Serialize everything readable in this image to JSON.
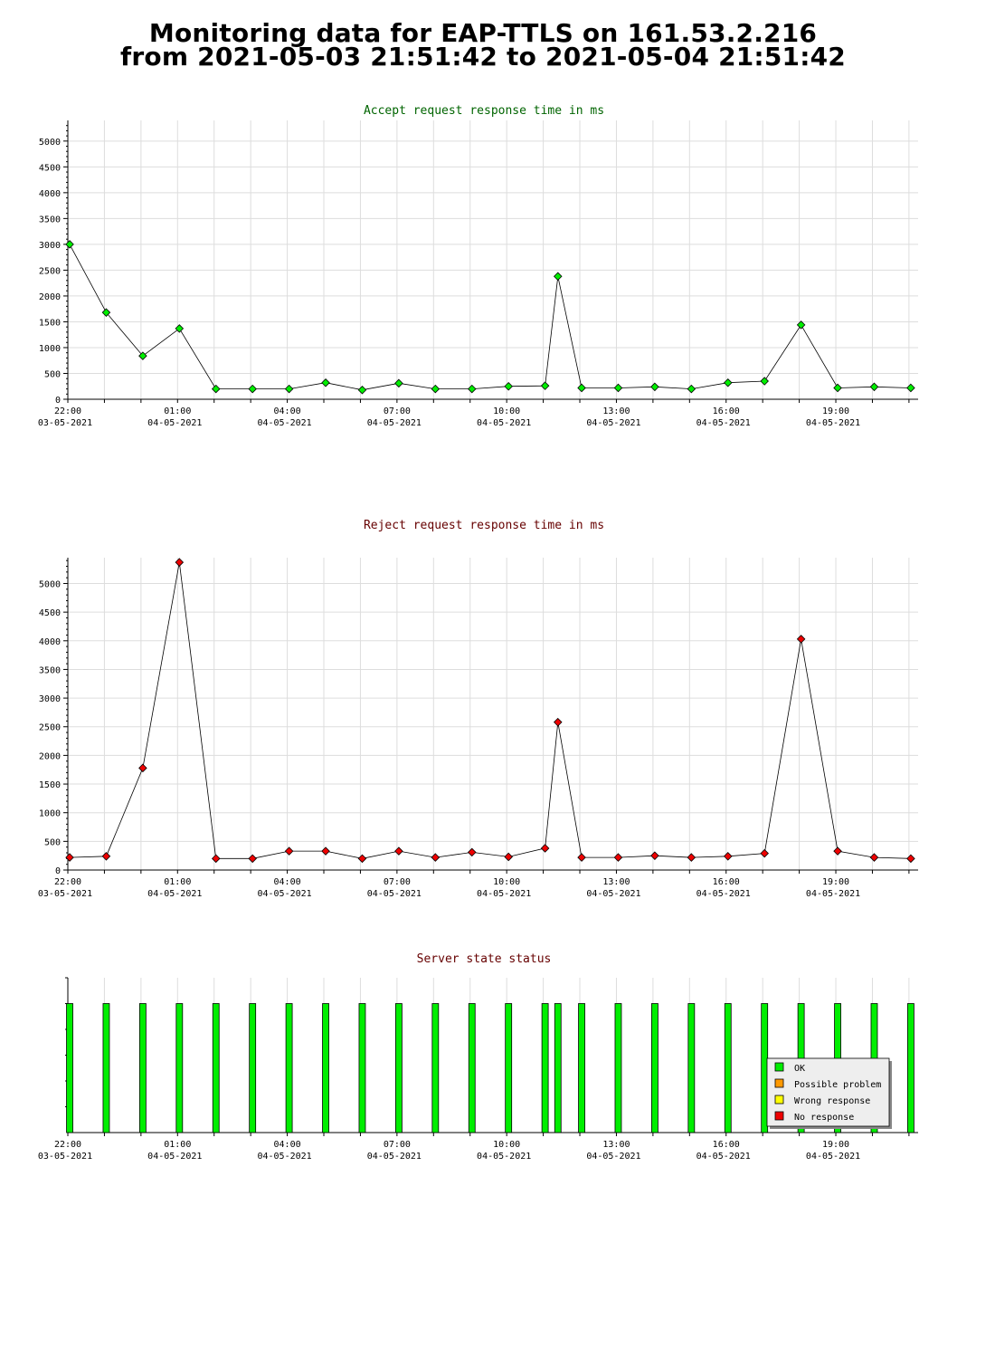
{
  "page": {
    "title_line1": "Monitoring data for EAP-TTLS on 161.53.2.216",
    "title_line2": "from 2021-05-03 21:51:42 to 2021-05-04 21:51:42"
  },
  "colors": {
    "accept_title": "#006400",
    "reject_title": "#660000",
    "status_title": "#660000",
    "accept_marker": "#00ee00",
    "reject_marker": "#ee0000",
    "ok": "#00ee00",
    "possible_problem": "#ff9900",
    "wrong_response": "#ffff00",
    "no_response": "#ee0000",
    "grid": "#dddddd"
  },
  "chart_data": [
    {
      "type": "line",
      "title": "Accept request response time in ms",
      "xlim": [
        22,
        45.25
      ],
      "ylim": [
        0,
        5400
      ],
      "yticks": [
        0,
        500,
        1000,
        1500,
        2000,
        2500,
        3000,
        3500,
        4000,
        4500,
        5000
      ],
      "xticks": [
        {
          "x": 22,
          "time": "22:00",
          "date": "03-05-2021"
        },
        {
          "x": 25,
          "time": "01:00",
          "date": "04-05-2021"
        },
        {
          "x": 28,
          "time": "04:00",
          "date": "04-05-2021"
        },
        {
          "x": 31,
          "time": "07:00",
          "date": "04-05-2021"
        },
        {
          "x": 34,
          "time": "10:00",
          "date": "04-05-2021"
        },
        {
          "x": 37,
          "time": "13:00",
          "date": "04-05-2021"
        },
        {
          "x": 40,
          "time": "16:00",
          "date": "04-05-2021"
        },
        {
          "x": 43,
          "time": "19:00",
          "date": "04-05-2021"
        }
      ],
      "x": [
        22.05,
        23.05,
        24.05,
        25.05,
        26.05,
        27.05,
        28.05,
        29.05,
        30.05,
        31.05,
        32.05,
        33.05,
        34.05,
        35.05,
        35.4,
        36.05,
        37.05,
        38.05,
        39.05,
        40.05,
        41.05,
        42.05,
        43.05,
        44.05,
        45.05
      ],
      "series": [
        {
          "values": [
            3000,
            1680,
            840,
            1370,
            200,
            200,
            200,
            320,
            180,
            310,
            200,
            200,
            250,
            260,
            2380,
            220,
            220,
            240,
            200,
            320,
            350,
            1440,
            220,
            240,
            220
          ]
        }
      ]
    },
    {
      "type": "line",
      "title": "Reject request response time in ms",
      "xlim": [
        22,
        45.25
      ],
      "ylim": [
        0,
        5450
      ],
      "yticks": [
        0,
        500,
        1000,
        1500,
        2000,
        2500,
        3000,
        3500,
        4000,
        4500,
        5000
      ],
      "xticks": [
        {
          "x": 22,
          "time": "22:00",
          "date": "03-05-2021"
        },
        {
          "x": 25,
          "time": "01:00",
          "date": "04-05-2021"
        },
        {
          "x": 28,
          "time": "04:00",
          "date": "04-05-2021"
        },
        {
          "x": 31,
          "time": "07:00",
          "date": "04-05-2021"
        },
        {
          "x": 34,
          "time": "10:00",
          "date": "04-05-2021"
        },
        {
          "x": 37,
          "time": "13:00",
          "date": "04-05-2021"
        },
        {
          "x": 40,
          "time": "16:00",
          "date": "04-05-2021"
        },
        {
          "x": 43,
          "time": "19:00",
          "date": "04-05-2021"
        }
      ],
      "x": [
        22.05,
        23.05,
        24.05,
        25.05,
        26.05,
        27.05,
        28.05,
        29.05,
        30.05,
        31.05,
        32.05,
        33.05,
        34.05,
        35.05,
        35.4,
        36.05,
        37.05,
        38.05,
        39.05,
        40.05,
        41.05,
        42.05,
        43.05,
        44.05,
        45.05
      ],
      "series": [
        {
          "values": [
            220,
            240,
            1780,
            5370,
            200,
            200,
            330,
            330,
            200,
            330,
            220,
            310,
            230,
            380,
            2580,
            220,
            220,
            250,
            220,
            240,
            290,
            4030,
            330,
            220,
            200
          ]
        }
      ]
    },
    {
      "type": "bar",
      "title": "Server state status",
      "xlim": [
        22,
        45.25
      ],
      "ylim": [
        0,
        1.2
      ],
      "xticks": [
        {
          "x": 22,
          "time": "22:00",
          "date": "03-05-2021"
        },
        {
          "x": 25,
          "time": "01:00",
          "date": "04-05-2021"
        },
        {
          "x": 28,
          "time": "04:00",
          "date": "04-05-2021"
        },
        {
          "x": 31,
          "time": "07:00",
          "date": "04-05-2021"
        },
        {
          "x": 34,
          "time": "10:00",
          "date": "04-05-2021"
        },
        {
          "x": 37,
          "time": "13:00",
          "date": "04-05-2021"
        },
        {
          "x": 40,
          "time": "16:00",
          "date": "04-05-2021"
        },
        {
          "x": 43,
          "time": "19:00",
          "date": "04-05-2021"
        }
      ],
      "x": [
        22.05,
        23.05,
        24.05,
        25.05,
        26.05,
        27.05,
        28.05,
        29.05,
        30.05,
        31.05,
        32.05,
        33.05,
        34.05,
        35.05,
        35.4,
        36.05,
        37.05,
        38.05,
        39.05,
        40.05,
        41.05,
        42.05,
        43.05,
        44.05,
        45.05
      ],
      "states": [
        "OK",
        "OK",
        "OK",
        "OK",
        "OK",
        "OK",
        "OK",
        "OK",
        "OK",
        "OK",
        "OK",
        "OK",
        "OK",
        "OK",
        "OK",
        "OK",
        "OK",
        "OK",
        "OK",
        "OK",
        "OK",
        "OK",
        "OK",
        "OK",
        "OK"
      ],
      "values": [
        1,
        1,
        1,
        1,
        1,
        1,
        1,
        1,
        1,
        1,
        1,
        1,
        1,
        1,
        1,
        1,
        1,
        1,
        1,
        1,
        1,
        1,
        1,
        1,
        1
      ],
      "legend_placement": "bottom-right",
      "legend": [
        {
          "label": "OK",
          "state": "ok"
        },
        {
          "label": "Possible problem",
          "state": "possible_problem"
        },
        {
          "label": "Wrong response",
          "state": "wrong_response"
        },
        {
          "label": "No response",
          "state": "no_response"
        }
      ]
    }
  ]
}
